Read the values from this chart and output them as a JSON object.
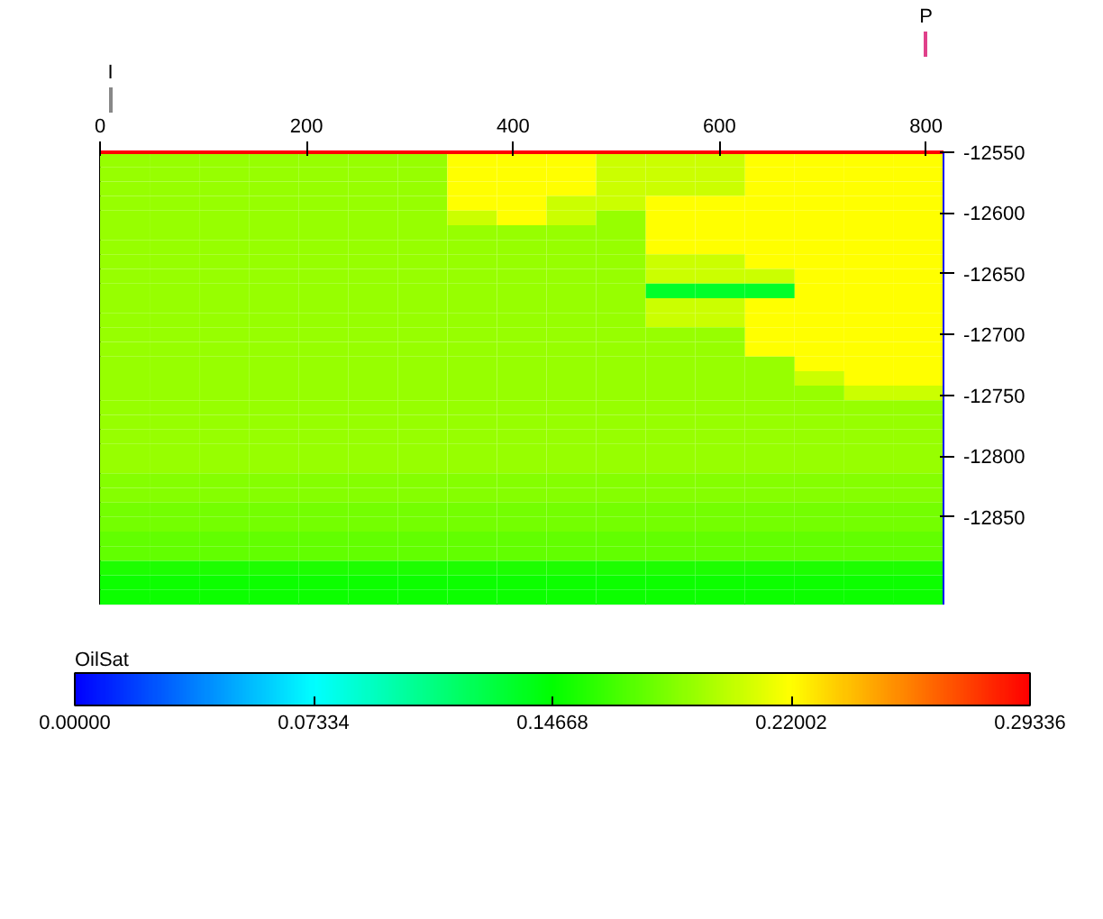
{
  "chart_data": {
    "type": "heatmap",
    "clabel": "OilSat",
    "cells": [
      [
        0.19,
        0.19,
        0.19,
        0.19,
        0.19,
        0.19,
        0.19,
        0.22,
        0.22,
        0.22,
        0.205,
        0.205,
        0.205,
        0.22,
        0.22,
        0.22,
        0.22
      ],
      [
        0.19,
        0.19,
        0.19,
        0.19,
        0.19,
        0.19,
        0.19,
        0.22,
        0.22,
        0.22,
        0.205,
        0.205,
        0.205,
        0.22,
        0.22,
        0.22,
        0.22
      ],
      [
        0.19,
        0.19,
        0.19,
        0.19,
        0.19,
        0.19,
        0.19,
        0.22,
        0.22,
        0.22,
        0.205,
        0.205,
        0.205,
        0.22,
        0.22,
        0.22,
        0.22
      ],
      [
        0.19,
        0.19,
        0.19,
        0.19,
        0.19,
        0.19,
        0.19,
        0.22,
        0.22,
        0.205,
        0.205,
        0.22,
        0.22,
        0.22,
        0.22,
        0.22,
        0.22
      ],
      [
        0.19,
        0.19,
        0.19,
        0.19,
        0.19,
        0.19,
        0.19,
        0.205,
        0.22,
        0.205,
        0.19,
        0.22,
        0.22,
        0.22,
        0.22,
        0.22,
        0.22
      ],
      [
        0.19,
        0.19,
        0.19,
        0.19,
        0.19,
        0.19,
        0.19,
        0.19,
        0.19,
        0.19,
        0.19,
        0.22,
        0.22,
        0.22,
        0.22,
        0.22,
        0.22
      ],
      [
        0.19,
        0.19,
        0.19,
        0.19,
        0.19,
        0.19,
        0.19,
        0.19,
        0.19,
        0.19,
        0.19,
        0.22,
        0.22,
        0.22,
        0.22,
        0.22,
        0.22
      ],
      [
        0.19,
        0.19,
        0.19,
        0.19,
        0.19,
        0.19,
        0.19,
        0.19,
        0.19,
        0.19,
        0.19,
        0.205,
        0.205,
        0.22,
        0.22,
        0.22,
        0.22
      ],
      [
        0.19,
        0.19,
        0.19,
        0.19,
        0.19,
        0.19,
        0.19,
        0.19,
        0.19,
        0.19,
        0.19,
        0.205,
        0.205,
        0.205,
        0.22,
        0.22,
        0.22
      ],
      [
        0.19,
        0.19,
        0.19,
        0.19,
        0.19,
        0.19,
        0.19,
        0.19,
        0.19,
        0.19,
        0.19,
        0.135,
        0.135,
        0.135,
        0.22,
        0.22,
        0.22
      ],
      [
        0.19,
        0.19,
        0.19,
        0.19,
        0.19,
        0.19,
        0.19,
        0.19,
        0.19,
        0.19,
        0.19,
        0.205,
        0.205,
        0.22,
        0.22,
        0.22,
        0.22
      ],
      [
        0.19,
        0.19,
        0.19,
        0.19,
        0.19,
        0.19,
        0.19,
        0.19,
        0.19,
        0.19,
        0.19,
        0.205,
        0.205,
        0.22,
        0.22,
        0.22,
        0.22
      ],
      [
        0.19,
        0.19,
        0.19,
        0.19,
        0.19,
        0.19,
        0.19,
        0.19,
        0.19,
        0.19,
        0.19,
        0.19,
        0.19,
        0.22,
        0.22,
        0.22,
        0.22
      ],
      [
        0.19,
        0.19,
        0.19,
        0.19,
        0.19,
        0.19,
        0.19,
        0.19,
        0.19,
        0.19,
        0.19,
        0.19,
        0.19,
        0.22,
        0.22,
        0.22,
        0.22
      ],
      [
        0.19,
        0.19,
        0.19,
        0.19,
        0.19,
        0.19,
        0.19,
        0.19,
        0.19,
        0.19,
        0.19,
        0.19,
        0.19,
        0.19,
        0.22,
        0.22,
        0.22
      ],
      [
        0.19,
        0.19,
        0.19,
        0.19,
        0.19,
        0.19,
        0.19,
        0.19,
        0.19,
        0.19,
        0.19,
        0.19,
        0.19,
        0.19,
        0.205,
        0.22,
        0.22
      ],
      [
        0.19,
        0.19,
        0.19,
        0.19,
        0.19,
        0.19,
        0.19,
        0.19,
        0.19,
        0.19,
        0.19,
        0.19,
        0.19,
        0.19,
        0.19,
        0.205,
        0.205
      ],
      [
        0.19,
        0.19,
        0.19,
        0.19,
        0.19,
        0.19,
        0.19,
        0.19,
        0.19,
        0.19,
        0.19,
        0.19,
        0.19,
        0.19,
        0.19,
        0.19,
        0.19
      ],
      [
        0.19,
        0.19,
        0.19,
        0.19,
        0.19,
        0.19,
        0.19,
        0.19,
        0.19,
        0.19,
        0.19,
        0.19,
        0.19,
        0.19,
        0.19,
        0.19,
        0.19
      ],
      [
        0.19,
        0.19,
        0.19,
        0.19,
        0.19,
        0.19,
        0.19,
        0.19,
        0.19,
        0.19,
        0.19,
        0.19,
        0.19,
        0.19,
        0.19,
        0.19,
        0.19
      ],
      [
        0.19,
        0.19,
        0.19,
        0.19,
        0.19,
        0.19,
        0.19,
        0.19,
        0.19,
        0.19,
        0.19,
        0.19,
        0.19,
        0.19,
        0.19,
        0.19,
        0.19
      ],
      [
        0.19,
        0.19,
        0.19,
        0.19,
        0.19,
        0.19,
        0.19,
        0.19,
        0.19,
        0.19,
        0.19,
        0.19,
        0.19,
        0.19,
        0.19,
        0.19,
        0.19
      ],
      [
        0.185,
        0.185,
        0.185,
        0.185,
        0.185,
        0.185,
        0.185,
        0.185,
        0.185,
        0.185,
        0.185,
        0.185,
        0.185,
        0.185,
        0.185,
        0.185,
        0.185
      ],
      [
        0.185,
        0.185,
        0.185,
        0.185,
        0.185,
        0.185,
        0.185,
        0.185,
        0.185,
        0.185,
        0.185,
        0.185,
        0.185,
        0.185,
        0.185,
        0.185,
        0.185
      ],
      [
        0.18,
        0.18,
        0.18,
        0.18,
        0.18,
        0.18,
        0.18,
        0.18,
        0.18,
        0.18,
        0.18,
        0.18,
        0.18,
        0.18,
        0.18,
        0.18,
        0.18
      ],
      [
        0.18,
        0.18,
        0.18,
        0.18,
        0.18,
        0.18,
        0.18,
        0.18,
        0.18,
        0.18,
        0.18,
        0.18,
        0.18,
        0.18,
        0.18,
        0.18,
        0.18
      ],
      [
        0.175,
        0.175,
        0.175,
        0.175,
        0.175,
        0.175,
        0.175,
        0.175,
        0.175,
        0.175,
        0.175,
        0.175,
        0.175,
        0.175,
        0.175,
        0.175,
        0.175
      ],
      [
        0.175,
        0.175,
        0.175,
        0.175,
        0.175,
        0.175,
        0.175,
        0.175,
        0.175,
        0.175,
        0.175,
        0.175,
        0.175,
        0.175,
        0.175,
        0.175,
        0.175
      ],
      [
        0.155,
        0.155,
        0.155,
        0.155,
        0.155,
        0.155,
        0.155,
        0.155,
        0.155,
        0.155,
        0.155,
        0.155,
        0.155,
        0.155,
        0.155,
        0.155,
        0.155
      ],
      [
        0.15,
        0.15,
        0.15,
        0.15,
        0.15,
        0.15,
        0.15,
        0.15,
        0.15,
        0.15,
        0.15,
        0.15,
        0.15,
        0.15,
        0.15,
        0.15,
        0.15
      ],
      [
        0.15,
        0.15,
        0.15,
        0.15,
        0.15,
        0.15,
        0.15,
        0.15,
        0.15,
        0.15,
        0.15,
        0.15,
        0.15,
        0.15,
        0.15,
        0.15,
        0.15
      ]
    ],
    "clim": [
      0,
      0.29336
    ],
    "cticks": [
      {
        "value": 0,
        "label": "0.00000"
      },
      0.07334,
      0.14668,
      0.22002,
      0.29336
    ],
    "xlim": [
      0,
      817
    ],
    "xticks": [
      0,
      200,
      400,
      600,
      800
    ],
    "ylim": [
      -12922,
      -12550
    ],
    "yticks": [
      -12550,
      -12600,
      -12650,
      -12700,
      -12750,
      -12800,
      -12850
    ],
    "ref_lines": [
      {
        "axis": "x",
        "value": 10,
        "label": "I",
        "color": "#888888"
      },
      {
        "axis": "x",
        "value": 800,
        "label": "P",
        "color": "#e0408a"
      }
    ]
  }
}
